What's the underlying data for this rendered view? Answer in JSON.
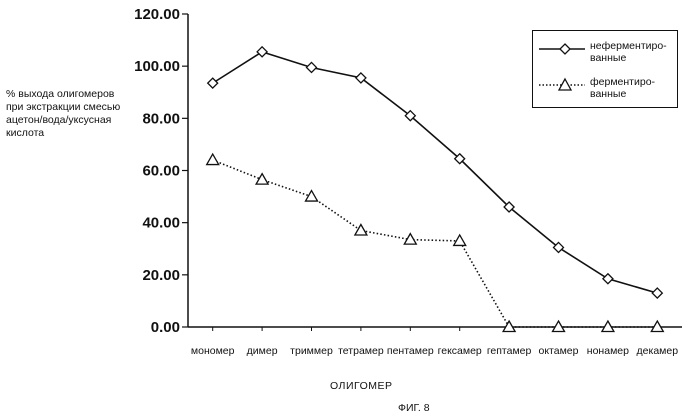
{
  "chart_data": {
    "type": "line",
    "categories": [
      "мономер",
      "димер",
      "триммер",
      "тетрамер",
      "пентамер",
      "гексамер",
      "гептамер",
      "октамер",
      "нонамер",
      "декамер"
    ],
    "series": [
      {
        "name": "неферментиро-ванные",
        "name_lines": [
          "неферментиро-",
          "ванные"
        ],
        "values": [
          93.5,
          105.5,
          99.5,
          95.5,
          81.0,
          64.5,
          46.0,
          30.5,
          18.5,
          13.0
        ],
        "marker": "diamond",
        "line_style": "solid"
      },
      {
        "name": "ферментиро-ванные",
        "name_lines": [
          "ферментиро-",
          "ванные"
        ],
        "values": [
          64.0,
          56.5,
          50.0,
          37.0,
          33.5,
          33.0,
          0.0,
          0.0,
          0.0,
          0.0
        ],
        "marker": "triangle",
        "line_style": "dotted"
      }
    ],
    "ylim": [
      0,
      120
    ],
    "yticks": [
      "0.00",
      "20.00",
      "40.00",
      "60.00",
      "80.00",
      "100.00",
      "120.00"
    ],
    "ylabel_lines": [
      "% выхода олигомеров",
      "при экстракции смесью",
      "ацетон/вода/уксусная",
      "кислота"
    ],
    "xlabel": "ОЛИГОМЕР",
    "caption": "ФИГ. 8",
    "legend_position": "top-right",
    "grid": false
  }
}
